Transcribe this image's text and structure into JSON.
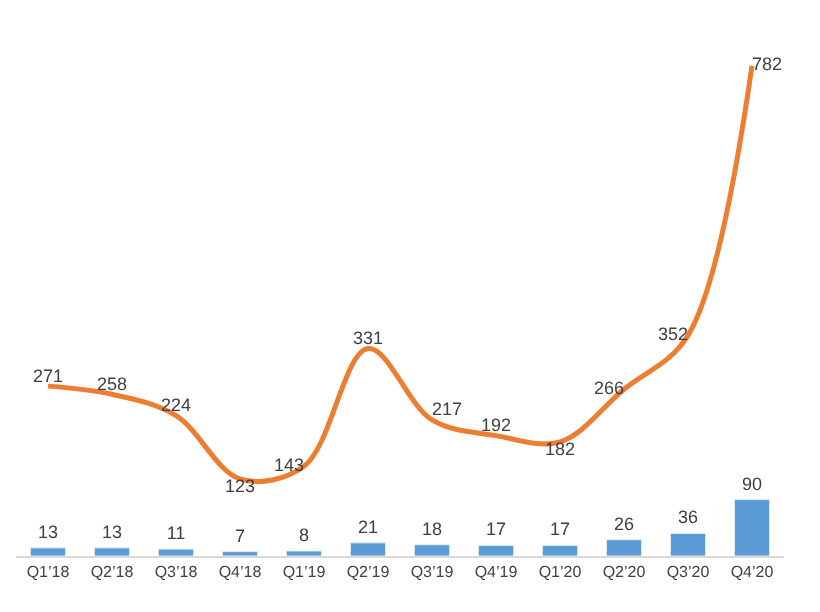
{
  "chart_data": {
    "type": "bar",
    "categories": [
      "Q1’18",
      "Q2’18",
      "Q3’18",
      "Q4’18",
      "Q1’19",
      "Q2’19",
      "Q3’19",
      "Q4’19",
      "Q1’20",
      "Q2’20",
      "Q3’20",
      "Q4’20"
    ],
    "series": [
      {
        "color": "#5b9bd5",
        "values": [
          13,
          13,
          11,
          7,
          8,
          21,
          18,
          17,
          17,
          26,
          36,
          90
        ]
      },
      {
        "type": "line",
        "color": "#ed7d31",
        "values": [
          271,
          258,
          224,
          123,
          143,
          331,
          217,
          192,
          182,
          266,
          352,
          782
        ]
      }
    ],
    "data_labels": true,
    "marker": "none",
    "line_style": "solid"
  }
}
